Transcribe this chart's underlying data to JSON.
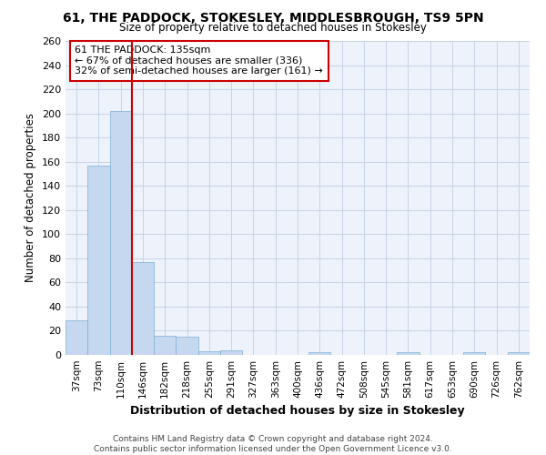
{
  "title": "61, THE PADDOCK, STOKESLEY, MIDDLESBROUGH, TS9 5PN",
  "subtitle": "Size of property relative to detached houses in Stokesley",
  "xlabel": "Distribution of detached houses by size in Stokesley",
  "ylabel": "Number of detached properties",
  "bar_color": "#c5d8f0",
  "bar_edge_color": "#7bafd4",
  "grid_color": "#c8d4e8",
  "background_color": "#eef2fa",
  "categories": [
    "37sqm",
    "73sqm",
    "110sqm",
    "146sqm",
    "182sqm",
    "218sqm",
    "255sqm",
    "291sqm",
    "327sqm",
    "363sqm",
    "400sqm",
    "436sqm",
    "472sqm",
    "508sqm",
    "545sqm",
    "581sqm",
    "617sqm",
    "653sqm",
    "690sqm",
    "726sqm",
    "762sqm"
  ],
  "values": [
    29,
    157,
    202,
    77,
    16,
    15,
    3,
    4,
    0,
    0,
    0,
    2,
    0,
    0,
    0,
    2,
    0,
    0,
    2,
    0,
    2
  ],
  "property_line_x": 3,
  "property_line_color": "#cc0000",
  "annotation_text": "61 THE PADDOCK: 135sqm\n← 67% of detached houses are smaller (336)\n32% of semi-detached houses are larger (161) →",
  "annotation_box_color": "#cc0000",
  "ylim": [
    0,
    260
  ],
  "yticks": [
    0,
    20,
    40,
    60,
    80,
    100,
    120,
    140,
    160,
    180,
    200,
    220,
    240,
    260
  ],
  "footer_line1": "Contains HM Land Registry data © Crown copyright and database right 2024.",
  "footer_line2": "Contains public sector information licensed under the Open Government Licence v3.0."
}
